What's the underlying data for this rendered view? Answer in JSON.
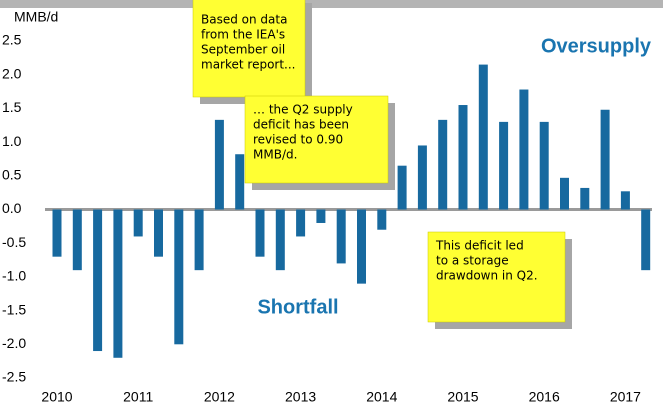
{
  "chart_data": {
    "type": "bar",
    "y_label": "MMB/d",
    "categories": [
      "2010",
      null,
      null,
      null,
      "2011",
      null,
      null,
      null,
      "2012",
      null,
      null,
      null,
      "2013",
      null,
      null,
      null,
      "2014",
      null,
      null,
      null,
      "2015",
      null,
      null,
      null,
      "2016",
      null,
      null,
      null,
      "2017",
      null
    ],
    "values": [
      -0.7,
      -0.9,
      -2.1,
      -2.2,
      -0.4,
      -0.7,
      -2.0,
      -0.9,
      1.33,
      0.82,
      -0.7,
      -0.9,
      -0.4,
      -0.2,
      -0.8,
      -1.1,
      -0.3,
      0.65,
      0.95,
      1.33,
      1.55,
      2.15,
      1.3,
      1.78,
      1.3,
      0.47,
      0.32,
      1.48,
      0.27,
      -0.9
    ],
    "color": "#17699f",
    "ylim": [
      -2.5,
      2.5
    ],
    "yticks": [
      2.5,
      {
        "value": 2,
        "label": "2.0"
      },
      1.5,
      {
        "value": 1,
        "label": "1.0"
      },
      0.5,
      {
        "value": 0,
        "label": "0.0"
      },
      -0.5,
      {
        "value": -1,
        "label": "-1.0"
      },
      -1.5,
      {
        "value": -2,
        "label": "-2.0"
      },
      -2.5
    ],
    "annotations": [
      "Oversupply",
      "Shortfall"
    ],
    "notes": [
      {
        "lines": [
          "Based on data",
          "from the IEA's",
          "September oil",
          "market report..."
        ]
      },
      {
        "lines": [
          "… the Q2 supply",
          "deficit has been",
          "revised to 0.90",
          "MMB/d."
        ]
      },
      {
        "lines": [
          "This deficit led",
          "to a storage",
          "drawdown in Q2."
        ]
      }
    ]
  }
}
